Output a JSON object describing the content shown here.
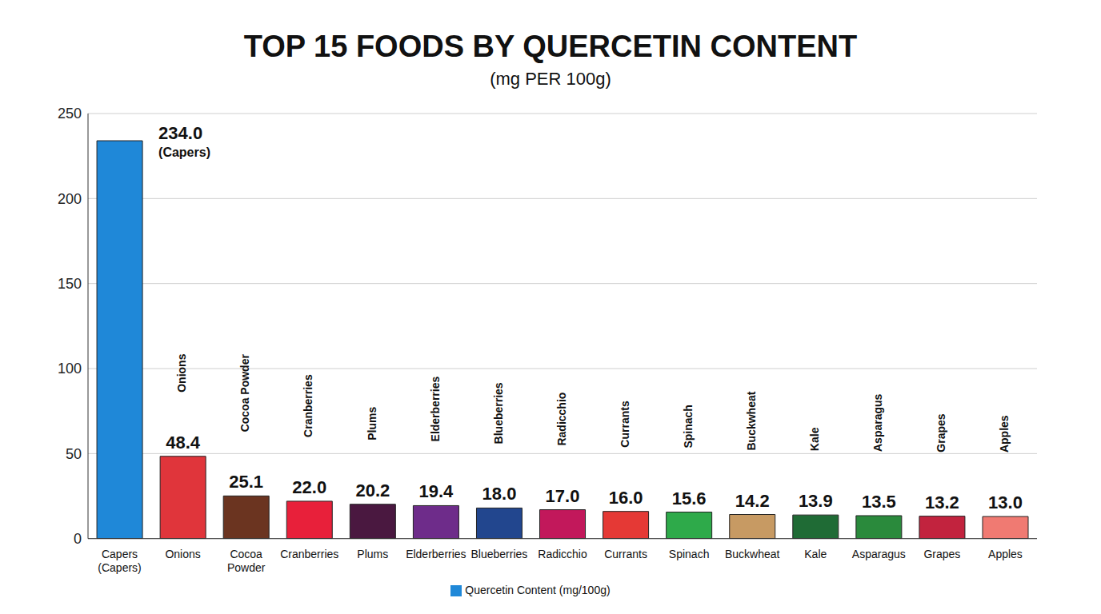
{
  "chart_data": {
    "type": "bar",
    "title": "TOP 15 FOODS BY QUERCETIN CONTENT",
    "subtitle": "(mg PER 100g)",
    "categories": [
      "Capers (Capers)",
      "Onions",
      "Cocoa Powder",
      "Cranberries",
      "Plums",
      "Elderberries",
      "Blueberries",
      "Radicchio",
      "Currants",
      "Spinach",
      "Buckwheat",
      "Kale",
      "Asparagus",
      "Grapes",
      "Apples"
    ],
    "series": [
      {
        "name": "Quercetin Content (mg/100g)",
        "color": "#1f88d8",
        "values": [
          234.0,
          48.4,
          25.1,
          22.0,
          20.2,
          19.4,
          18.0,
          17.0,
          16.0,
          15.6,
          14.2,
          13.9,
          13.5,
          13.2,
          13.0
        ],
        "value_labels": [
          "234.0",
          "48.4",
          "25.1",
          "22.0",
          "20.2",
          "19.4",
          "18.0",
          "17.0",
          "16.0",
          "15.6",
          "14.2",
          "13.9",
          "13.5",
          "13.2",
          "13.0"
        ],
        "colors": [
          "#1f88d8",
          "#e0353b",
          "#6b3420",
          "#e8203a",
          "#4a1840",
          "#6e2c8a",
          "#22468e",
          "#c2185b",
          "#e53935",
          "#2eaa4a",
          "#c79a63",
          "#1f6b35",
          "#2a8a3c",
          "#c2233e",
          "#f07a72"
        ]
      }
    ],
    "annotations": [
      {
        "text": "(Capers)",
        "category": "Capers (Capers)"
      }
    ],
    "ylim": [
      0,
      250
    ],
    "yticks": [
      0,
      50,
      100,
      150,
      200,
      250
    ],
    "grid": true,
    "data_labels": true,
    "legend": "bottom"
  }
}
